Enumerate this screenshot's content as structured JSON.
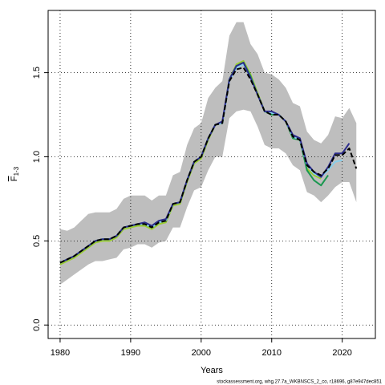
{
  "chart_data": {
    "type": "line",
    "xlabel": "Years",
    "ylabel": {
      "text": "F",
      "subscript": "1-3"
    },
    "footnote": "stockassessment.org, whg.27.7a_WKBNSCS_2_co, r18696, g87e947dec851",
    "x": [
      1980,
      1981,
      1982,
      1983,
      1984,
      1985,
      1986,
      1987,
      1988,
      1989,
      1990,
      1991,
      1992,
      1993,
      1994,
      1995,
      1996,
      1997,
      1998,
      1999,
      2000,
      2001,
      2002,
      2003,
      2004,
      2005,
      2006,
      2007,
      2008,
      2009,
      2010,
      2011,
      2012,
      2013,
      2014,
      2015,
      2016,
      2017,
      2018,
      2019,
      2020,
      2021,
      2022
    ],
    "band": {
      "color": "#bebebe",
      "upper": [
        0.57,
        0.56,
        0.58,
        0.62,
        0.66,
        0.67,
        0.67,
        0.67,
        0.69,
        0.75,
        0.77,
        0.77,
        0.77,
        0.74,
        0.77,
        0.77,
        0.89,
        0.91,
        1.07,
        1.17,
        1.2,
        1.35,
        1.41,
        1.45,
        1.72,
        1.8,
        1.8,
        1.67,
        1.61,
        1.5,
        1.49,
        1.46,
        1.41,
        1.32,
        1.3,
        1.15,
        1.1,
        1.08,
        1.13,
        1.24,
        1.23,
        1.29,
        1.2
      ],
      "lower": [
        0.24,
        0.27,
        0.3,
        0.33,
        0.36,
        0.38,
        0.38,
        0.39,
        0.4,
        0.45,
        0.46,
        0.48,
        0.48,
        0.46,
        0.49,
        0.5,
        0.58,
        0.58,
        0.7,
        0.8,
        0.82,
        0.92,
        1.0,
        1.0,
        1.23,
        1.27,
        1.28,
        1.27,
        1.18,
        1.07,
        1.05,
        1.05,
        1.02,
        0.95,
        0.92,
        0.79,
        0.77,
        0.73,
        0.77,
        0.82,
        0.85,
        0.85,
        0.73
      ]
    },
    "series": [
      {
        "color": "#9acd32",
        "values": [
          0.36,
          0.38,
          0.4,
          0.43,
          0.46,
          0.49,
          0.5,
          0.5,
          0.52,
          0.57,
          0.58,
          0.59,
          0.59,
          0.57,
          0.6,
          0.61,
          0.71,
          0.72,
          0.85,
          0.96,
          0.99,
          1.1,
          1.19,
          1.2,
          1.46,
          1.55,
          1.57,
          1.49,
          1.38,
          1.27,
          1.25,
          1.25,
          1.21,
          1.11,
          1.1,
          0.93,
          0.89,
          0.87,
          null,
          null,
          null,
          null,
          null
        ]
      },
      {
        "color": "#1a9850",
        "values": [
          0.37,
          0.39,
          0.41,
          0.44,
          0.47,
          0.5,
          0.51,
          0.51,
          0.53,
          0.58,
          0.59,
          0.6,
          0.6,
          0.58,
          0.61,
          0.62,
          0.72,
          0.73,
          0.86,
          0.97,
          1.0,
          1.11,
          1.19,
          1.2,
          1.46,
          1.54,
          1.56,
          1.48,
          1.37,
          1.27,
          1.25,
          1.25,
          1.21,
          1.11,
          1.1,
          0.92,
          0.86,
          0.83,
          0.89,
          null,
          null,
          null,
          null
        ]
      },
      {
        "color": "#87ceeb",
        "values": [
          0.37,
          0.39,
          0.41,
          0.44,
          0.47,
          0.5,
          0.51,
          0.51,
          0.53,
          0.58,
          0.59,
          0.6,
          0.6,
          0.58,
          0.61,
          0.62,
          0.72,
          0.73,
          0.86,
          0.97,
          1.0,
          1.11,
          1.19,
          1.2,
          1.45,
          1.53,
          1.55,
          1.47,
          1.37,
          1.27,
          1.26,
          1.25,
          1.21,
          1.12,
          1.1,
          0.95,
          0.9,
          0.88,
          0.92,
          0.97,
          0.98,
          null,
          null
        ]
      },
      {
        "color": "#2c2c8c",
        "values": [
          0.37,
          0.39,
          0.41,
          0.44,
          0.47,
          0.5,
          0.51,
          0.51,
          0.53,
          0.58,
          0.59,
          0.6,
          0.61,
          0.59,
          0.62,
          0.63,
          0.72,
          0.73,
          0.86,
          0.97,
          1.0,
          1.11,
          1.19,
          1.21,
          1.46,
          1.54,
          1.56,
          1.47,
          1.37,
          1.27,
          1.27,
          1.25,
          1.21,
          1.13,
          1.11,
          0.96,
          0.91,
          0.88,
          0.94,
          1.02,
          1.02,
          1.08,
          null
        ]
      },
      {
        "color": "#000000",
        "dashed": true,
        "values": [
          0.37,
          0.39,
          0.41,
          0.44,
          0.47,
          0.5,
          0.51,
          0.51,
          0.53,
          0.58,
          0.59,
          0.6,
          0.6,
          0.58,
          0.61,
          0.62,
          0.72,
          0.73,
          0.86,
          0.97,
          1.0,
          1.11,
          1.19,
          1.2,
          1.45,
          1.52,
          1.53,
          1.46,
          1.37,
          1.27,
          1.25,
          1.25,
          1.21,
          1.12,
          1.1,
          0.95,
          0.91,
          0.89,
          0.93,
          1.01,
          1.01,
          1.05,
          0.93
        ]
      }
    ],
    "xlim": [
      1978.3,
      2024.7
    ],
    "ylim": [
      -0.08,
      1.87
    ],
    "xticks": [
      1980,
      1990,
      2000,
      2010,
      2020
    ],
    "yticks": [
      {
        "value": 0,
        "label": "0.0"
      },
      {
        "value": 0.5,
        "label": "0.5"
      },
      {
        "value": 1,
        "label": "1.0"
      },
      {
        "value": 1.5,
        "label": "1.5"
      }
    ],
    "grid": true
  }
}
